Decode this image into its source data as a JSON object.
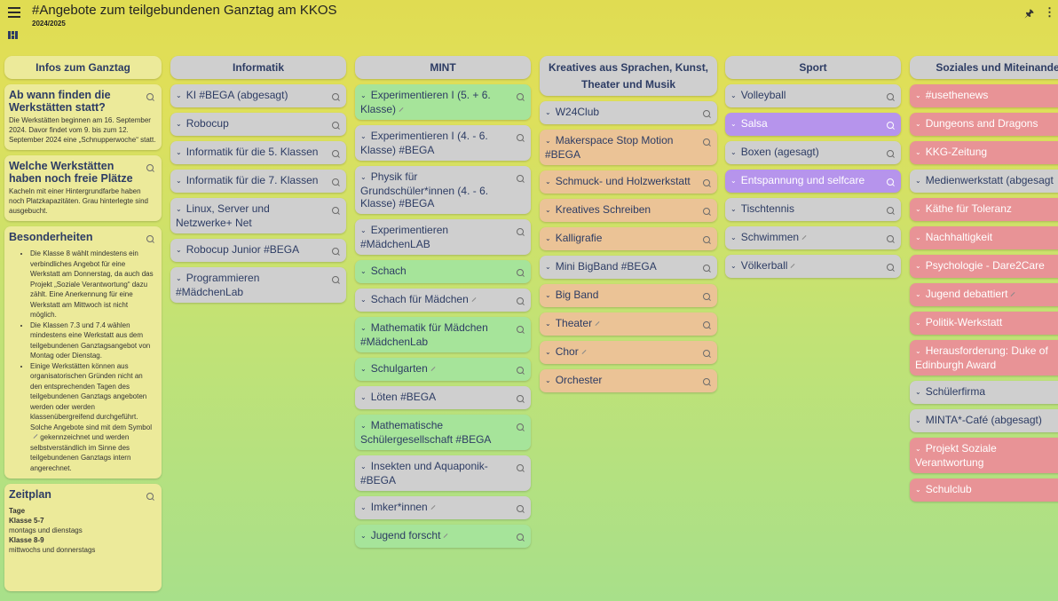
{
  "header": {
    "title": "#Angebote zum teilgebundenen Ganztag am KKOS",
    "subtitle": "2024/2025",
    "menu_icon": "hamburger-menu-icon",
    "layout_icon": "board-layout-icon",
    "pin_icon": "pin-icon",
    "more_icon": "more-vertical-icon"
  },
  "infos": {
    "heading": "Infos zum Ganztag",
    "card1_title": "Ab wann finden die Werkstätten statt?",
    "card1_body": "Die Werkstätten beginnen am 16. September 2024. Davor findet vom 9. bis zum 12. September 2024 eine „Schnupperwoche“ statt.",
    "card2_title": "Welche Werkstätten haben noch freie Plätze",
    "card2_body": "Kacheln mit einer Hintergrundfarbe haben noch Platzkapazitäten. Grau hinterlegte sind ausgebucht.",
    "card3_title": "Besonderheiten",
    "card3_items": [
      "Die Klasse 8 wählt mindestens ein verbindliches Angebot für eine Werkstatt am Donnerstag, da auch das Projekt „Soziale Verantwortung“ dazu zählt. Eine Anerkennung für eine Werkstatt am Mittwoch ist nicht möglich.",
      "Die Klassen 7.3 und 7.4 wählen mindestens eine Werkstatt aus dem teilgebundenen Ganztagsangebot von Montag oder Dienstag.",
      "Einige Werkstätten können aus organisatorischen Gründen nicht an den entsprechenden Tagen des teilgebundenen Ganztags angeboten werden oder werden klassenübergreifend durchgeführt. Solche Angebote sind mit dem Symbol",
      "gekennzeichnet und werden selbstverständlich im Sinne des teilgebundenen Ganztags intern angerechnet."
    ],
    "card4_title": "Zeitplan",
    "card4_tage": "Tage",
    "card4_k57": "Klasse 5-7",
    "card4_k57_val": "montags und dienstags",
    "card4_k89": "Klasse 8-9",
    "card4_k89_val": "mittwochs und donnerstags"
  },
  "columns": [
    {
      "heading": "Informatik",
      "cards": [
        {
          "label": "KI #BEGA (abgesagt)",
          "color": "grey"
        },
        {
          "label": "Robocup",
          "color": "grey"
        },
        {
          "label": "Informatik für die 5. Klassen",
          "color": "grey"
        },
        {
          "label": "Informatik für die 7. Klassen",
          "color": "grey"
        },
        {
          "label": "Linux, Server und Netzwerke+ Net",
          "color": "grey"
        },
        {
          "label": "Robocup Junior #BEGA",
          "color": "grey"
        },
        {
          "label": "Programmieren #MädchenLab",
          "color": "grey"
        }
      ]
    },
    {
      "heading": "MINT",
      "cards": [
        {
          "label": "Experimentieren I (5. + 6. Klasse)",
          "color": "green",
          "edit": true
        },
        {
          "label": "Experimentieren I (4. - 6. Klasse) #BEGA",
          "color": "grey"
        },
        {
          "label": "Physik für Grundschüler*innen (4. - 6. Klasse) #BEGA",
          "color": "grey"
        },
        {
          "label": "Experimentieren #MädchenLAB",
          "color": "grey"
        },
        {
          "label": "Schach",
          "color": "green"
        },
        {
          "label": "Schach für Mädchen",
          "color": "grey",
          "edit": true
        },
        {
          "label": "Mathematik für Mädchen #MädchenLab",
          "color": "green"
        },
        {
          "label": "Schulgarten",
          "color": "green",
          "edit": true
        },
        {
          "label": "Löten #BEGA",
          "color": "grey"
        },
        {
          "label": "Mathematische Schülergesellschaft #BEGA",
          "color": "green"
        },
        {
          "label": "Insekten und Aquaponik- #BEGA",
          "color": "grey"
        },
        {
          "label": "Imker*innen",
          "color": "grey",
          "edit": true
        },
        {
          "label": "Jugend forscht",
          "color": "green",
          "edit": true
        }
      ]
    },
    {
      "heading": "Kreatives aus Sprachen, Kunst, Theater und Musik",
      "cards": [
        {
          "label": "W24Club",
          "color": "grey"
        },
        {
          "label": "Makerspace Stop Motion #BEGA",
          "color": "orange"
        },
        {
          "label": "Schmuck- und Holzwerkstatt",
          "color": "orange"
        },
        {
          "label": "Kreatives Schreiben",
          "color": "orange"
        },
        {
          "label": "Kalligrafie",
          "color": "orange"
        },
        {
          "label": "Mini BigBand #BEGA",
          "color": "grey"
        },
        {
          "label": "Big Band",
          "color": "orange"
        },
        {
          "label": "Theater",
          "color": "orange",
          "edit": true
        },
        {
          "label": "Chor",
          "color": "orange",
          "edit": true
        },
        {
          "label": "Orchester",
          "color": "orange"
        }
      ]
    },
    {
      "heading": "Sport",
      "cards": [
        {
          "label": "Volleyball",
          "color": "grey"
        },
        {
          "label": "Salsa",
          "color": "purple"
        },
        {
          "label": "Boxen (agesagt)",
          "color": "grey"
        },
        {
          "label": "Entspannung und selfcare",
          "color": "purple"
        },
        {
          "label": "Tischtennis",
          "color": "grey"
        },
        {
          "label": "Schwimmen",
          "color": "grey",
          "edit": true
        },
        {
          "label": "Völkerball",
          "color": "grey",
          "edit": true
        }
      ]
    },
    {
      "heading": "Soziales und Miteinande",
      "cards": [
        {
          "label": "#usethenews",
          "color": "red"
        },
        {
          "label": "Dungeons and Dragons",
          "color": "red"
        },
        {
          "label": "KKG-Zeitung",
          "color": "red"
        },
        {
          "label": "Medienwerkstatt (abgesagt",
          "color": "grey"
        },
        {
          "label": "Käthe für Toleranz",
          "color": "red"
        },
        {
          "label": "Nachhaltigkeit",
          "color": "red"
        },
        {
          "label": "Psychologie - Dare2Care",
          "color": "red"
        },
        {
          "label": "Jugend debattiert",
          "color": "red",
          "edit": true
        },
        {
          "label": "Politik-Werkstatt",
          "color": "red"
        },
        {
          "label": "Herausforderung: Duke of Edinburgh Award",
          "color": "red"
        },
        {
          "label": "Schülerfirma",
          "color": "grey"
        },
        {
          "label": "MINTA*-Café (abgesagt)",
          "color": "grey"
        },
        {
          "label": "Projekt Soziale Verantwortung",
          "color": "red"
        },
        {
          "label": "Schulclub",
          "color": "red"
        }
      ]
    }
  ]
}
